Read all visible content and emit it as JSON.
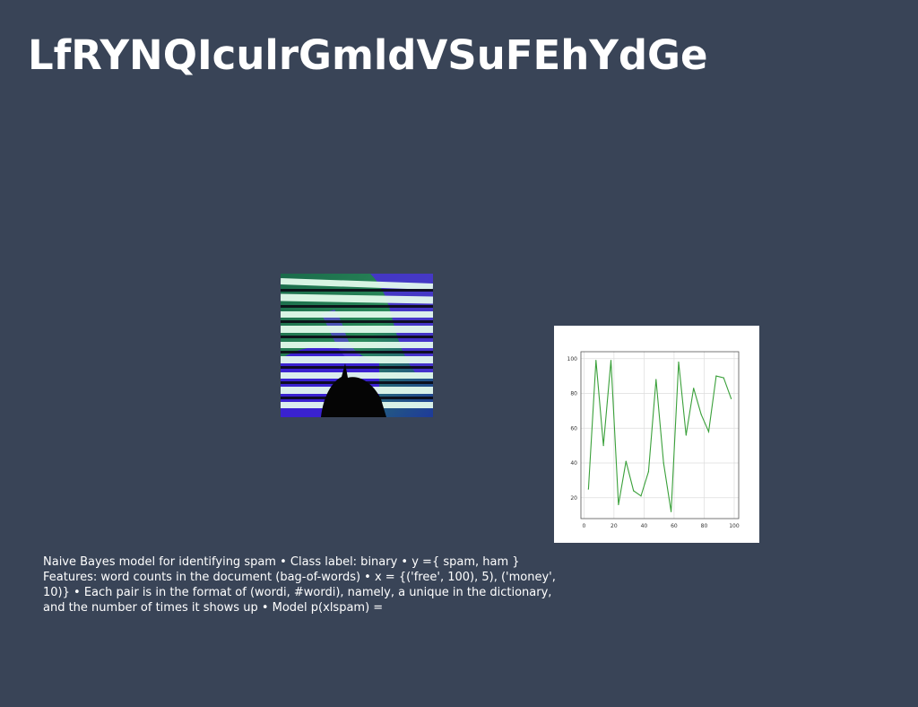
{
  "slide": {
    "title": "LfRYNQIculrGmldVSuFEhYdGe",
    "body_text": "Naive Bayes model for identifying spam • Class label: binary • y ={ spam, ham } Features: word counts in the document (bag-of-words) • x = {('free', 100), 5), ('money', 10)} • Each pair is in the format of (wordi, #wordi), namely, a unique in the dictionary, and the number of times it shows up • Model p(xlspam) ="
  },
  "colors": {
    "background": "#394457",
    "title_text": "#ffffff",
    "line": "#3aa03a",
    "grid": "#dddddd"
  },
  "chart_data": {
    "type": "line",
    "x": [
      3,
      8,
      13,
      18,
      23,
      28,
      33,
      38,
      43,
      48,
      53,
      58,
      63,
      68,
      73,
      78,
      83,
      88,
      93,
      98
    ],
    "series": [
      {
        "values": [
          25,
          99,
          50,
          99,
          16,
          41,
          24,
          21,
          35,
          88,
          40,
          12,
          98,
          56,
          83,
          68,
          58,
          90,
          89,
          77
        ]
      }
    ],
    "xlim": [
      -2,
      103
    ],
    "ylim": [
      8,
      104
    ],
    "xticks": [
      0,
      20,
      40,
      60,
      80,
      100
    ],
    "yticks": [
      20,
      40,
      60,
      80,
      100
    ],
    "grid": true,
    "title": "",
    "xlabel": "",
    "ylabel": ""
  }
}
